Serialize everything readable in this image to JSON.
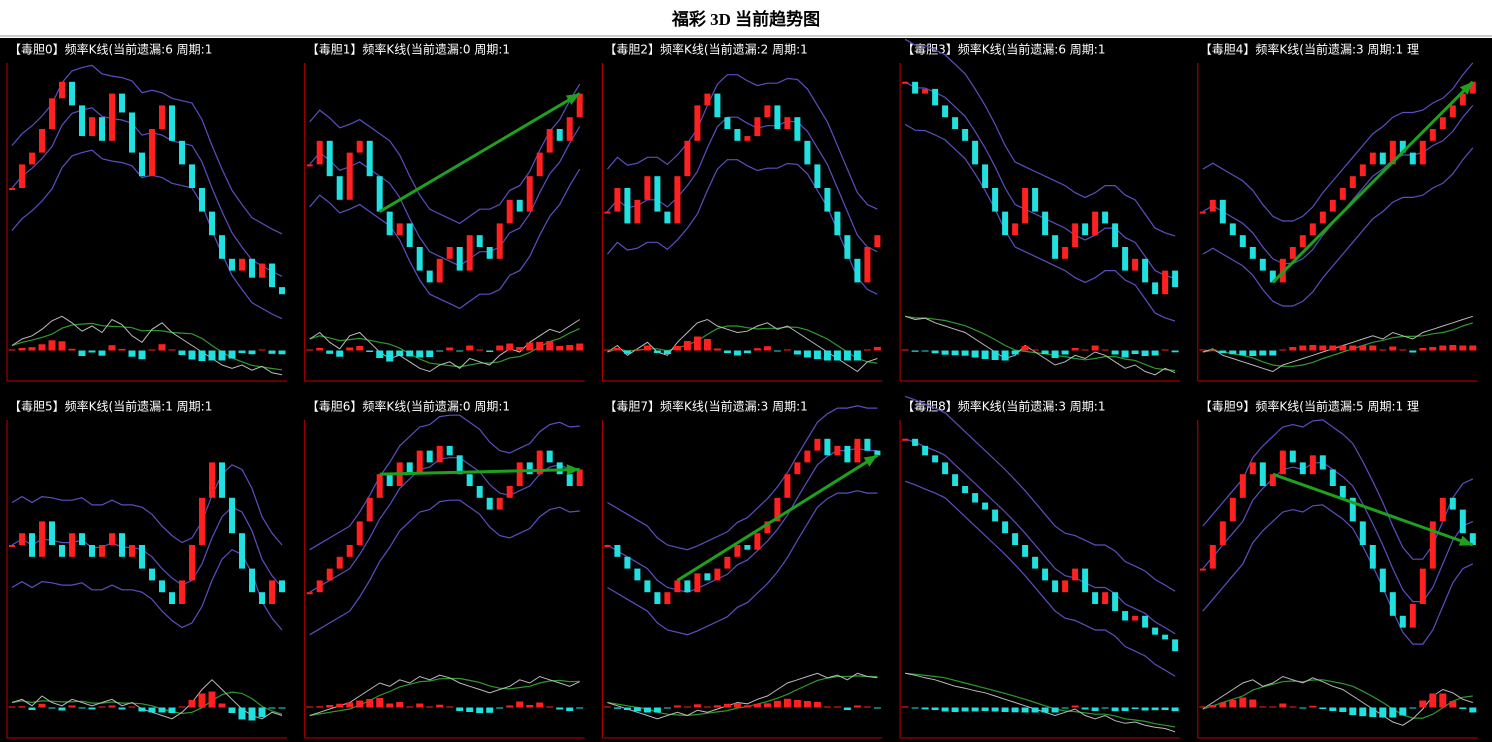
{
  "title": "福彩 3D 当前趋势图",
  "chart_data": [
    {
      "type": "kline",
      "title": "【毒胆0】频率K线(当前遗漏:6 周期:1",
      "up_color": "#ff2020",
      "down_color": "#20e0e0",
      "arrow": false,
      "values": [
        50,
        60,
        65,
        75,
        88,
        95,
        85,
        72,
        80,
        70,
        90,
        82,
        65,
        55,
        75,
        85,
        70,
        60,
        50,
        40,
        30,
        20,
        15,
        20,
        12,
        18,
        8,
        5
      ]
    },
    {
      "type": "kline",
      "title": "【毒胆1】频率K线(当前遗漏:0 周期:1",
      "up_color": "#ff2020",
      "down_color": "#20e0e0",
      "arrow": true,
      "values": [
        60,
        70,
        55,
        45,
        65,
        70,
        55,
        40,
        30,
        35,
        25,
        15,
        10,
        20,
        25,
        15,
        30,
        25,
        20,
        35,
        45,
        40,
        55,
        65,
        75,
        70,
        80,
        90
      ]
    },
    {
      "type": "kline",
      "title": "【毒胆2】频率K线(当前遗漏:2 周期:1",
      "up_color": "#ff2020",
      "down_color": "#20e0e0",
      "arrow": false,
      "values": [
        40,
        50,
        35,
        45,
        55,
        40,
        35,
        55,
        70,
        85,
        90,
        80,
        75,
        70,
        72,
        80,
        85,
        75,
        80,
        70,
        60,
        50,
        40,
        30,
        20,
        10,
        25,
        30
      ]
    },
    {
      "type": "kline",
      "title": "【毒胆3】频率K线(当前遗漏:6 周期:1",
      "up_color": "#ff2020",
      "down_color": "#20e0e0",
      "arrow": false,
      "values": [
        95,
        90,
        92,
        85,
        80,
        75,
        70,
        60,
        50,
        40,
        30,
        35,
        50,
        40,
        30,
        20,
        25,
        35,
        30,
        40,
        35,
        25,
        15,
        20,
        10,
        5,
        15,
        8
      ]
    },
    {
      "type": "kline",
      "title": "【毒胆4】频率K线(当前遗漏:3 周期:1 理",
      "up_color": "#ff2020",
      "down_color": "#20e0e0",
      "arrow": true,
      "values": [
        40,
        45,
        35,
        30,
        25,
        20,
        15,
        10,
        20,
        25,
        30,
        35,
        40,
        45,
        50,
        55,
        60,
        65,
        60,
        70,
        65,
        60,
        70,
        75,
        80,
        85,
        90,
        95
      ]
    },
    {
      "type": "kline",
      "title": "【毒胆5】频率K线(当前遗漏:1 周期:1",
      "up_color": "#ff2020",
      "down_color": "#20e0e0",
      "arrow": false,
      "values": [
        50,
        55,
        45,
        60,
        50,
        45,
        55,
        50,
        45,
        50,
        55,
        45,
        50,
        40,
        35,
        30,
        25,
        35,
        50,
        70,
        85,
        70,
        55,
        40,
        30,
        25,
        35,
        30
      ]
    },
    {
      "type": "kline",
      "title": "【毒胆6】频率K线(当前遗漏:0 周期:1",
      "up_color": "#ff2020",
      "down_color": "#20e0e0",
      "arrow": true,
      "values": [
        30,
        35,
        40,
        45,
        50,
        60,
        70,
        80,
        75,
        85,
        80,
        90,
        85,
        92,
        88,
        80,
        75,
        70,
        65,
        70,
        75,
        85,
        80,
        90,
        85,
        80,
        75,
        82
      ]
    },
    {
      "type": "kline",
      "title": "【毒胆7】频率K线(当前遗漏:3 周期:1",
      "up_color": "#ff2020",
      "down_color": "#20e0e0",
      "arrow": true,
      "values": [
        50,
        45,
        40,
        35,
        30,
        25,
        30,
        35,
        30,
        38,
        35,
        40,
        45,
        50,
        48,
        55,
        60,
        70,
        80,
        85,
        90,
        95,
        88,
        92,
        85,
        95,
        90,
        88
      ]
    },
    {
      "type": "kline",
      "title": "【毒胆8】频率K线(当前遗漏:3 周期:1",
      "up_color": "#ff2020",
      "down_color": "#20e0e0",
      "arrow": false,
      "values": [
        95,
        92,
        88,
        85,
        80,
        75,
        72,
        68,
        65,
        60,
        55,
        50,
        45,
        40,
        35,
        30,
        35,
        40,
        30,
        25,
        30,
        22,
        18,
        20,
        15,
        12,
        10,
        5
      ]
    },
    {
      "type": "kline",
      "title": "【毒胆9】频率K线(当前遗漏:5 周期:1 理",
      "up_color": "#ff2020",
      "down_color": "#20e0e0",
      "arrow": true,
      "values": [
        40,
        50,
        60,
        70,
        80,
        85,
        75,
        80,
        90,
        85,
        80,
        88,
        82,
        75,
        70,
        60,
        50,
        40,
        30,
        20,
        15,
        25,
        40,
        60,
        70,
        65,
        55,
        50
      ]
    }
  ]
}
